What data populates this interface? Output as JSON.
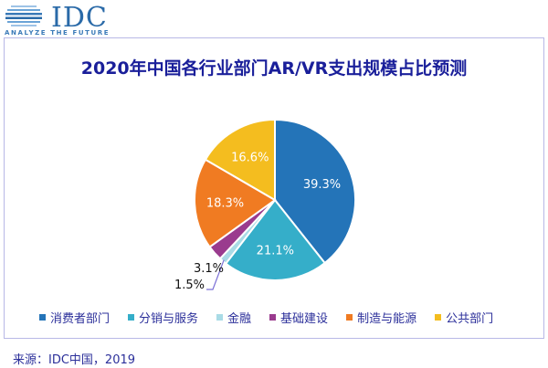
{
  "logo": {
    "text": "IDC",
    "tagline": "ANALYZE THE FUTURE"
  },
  "chart_data": {
    "type": "pie",
    "title": "2020年中国各行业部门AR/VR支出规模占比预测",
    "categories": [
      "消费者部门",
      "分销与服务",
      "金融",
      "基础建设",
      "制造与能源",
      "公共部门"
    ],
    "values": [
      39.3,
      21.1,
      1.5,
      3.1,
      18.3,
      16.6
    ],
    "labels": [
      "39.3%",
      "21.1%",
      "1.5%",
      "3.1%",
      "18.3%",
      "16.6%"
    ],
    "colors": [
      "#2474b8",
      "#35aec9",
      "#a9dbe6",
      "#9a3b8e",
      "#f07b22",
      "#f4bd1f"
    ],
    "legend_position": "bottom",
    "start_angle": "12 o'clock, clockwise"
  },
  "source": "来源：IDC中国，2019"
}
